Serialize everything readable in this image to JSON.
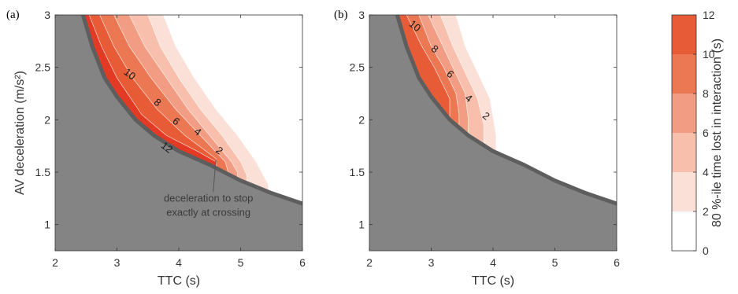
{
  "chart_data": [
    {
      "type": "contour",
      "panel": "(a)",
      "xlabel": "TTC (s)",
      "ylabel": "AV deceleration (m/s²)",
      "xlim": [
        2,
        6
      ],
      "ylim": [
        0.75,
        3
      ],
      "xticks": [
        "2",
        "3",
        "4",
        "5",
        "6"
      ],
      "yticks": [
        "1",
        "1.5",
        "2",
        "2.5",
        "3"
      ],
      "grey_boundary": [
        [
          2.45,
          3.0
        ],
        [
          2.6,
          2.7
        ],
        [
          2.8,
          2.4
        ],
        [
          3.0,
          2.22
        ],
        [
          3.3,
          2.0
        ],
        [
          3.6,
          1.85
        ],
        [
          4.0,
          1.7
        ],
        [
          4.5,
          1.57
        ],
        [
          5.0,
          1.42
        ],
        [
          5.5,
          1.3
        ],
        [
          6.0,
          1.2
        ]
      ],
      "band_edges": [
        {
          "level": 12,
          "points": [
            [
              2.55,
              3.0
            ],
            [
              2.75,
              2.7
            ],
            [
              3.0,
              2.4
            ],
            [
              3.4,
              2.05
            ],
            [
              3.8,
              1.85
            ],
            [
              4.3,
              1.7
            ],
            [
              4.6,
              1.6
            ]
          ]
        },
        {
          "level": 10,
          "points": [
            [
              2.72,
              3.0
            ],
            [
              2.95,
              2.7
            ],
            [
              3.25,
              2.4
            ],
            [
              3.65,
              2.1
            ],
            [
              4.1,
              1.85
            ],
            [
              4.6,
              1.63
            ]
          ]
        },
        {
          "level": 8,
          "points": [
            [
              2.95,
              3.0
            ],
            [
              3.2,
              2.7
            ],
            [
              3.55,
              2.4
            ],
            [
              3.95,
              2.1
            ],
            [
              4.35,
              1.85
            ],
            [
              4.75,
              1.6
            ],
            [
              4.8,
              1.5
            ]
          ]
        },
        {
          "level": 6,
          "points": [
            [
              3.2,
              3.0
            ],
            [
              3.45,
              2.7
            ],
            [
              3.8,
              2.4
            ],
            [
              4.15,
              2.1
            ],
            [
              4.5,
              1.85
            ],
            [
              4.85,
              1.6
            ],
            [
              4.95,
              1.5
            ]
          ]
        },
        {
          "level": 4,
          "points": [
            [
              3.5,
              3.0
            ],
            [
              3.7,
              2.7
            ],
            [
              4.0,
              2.4
            ],
            [
              4.35,
              2.1
            ],
            [
              4.7,
              1.85
            ],
            [
              5.0,
              1.6
            ],
            [
              5.1,
              1.47
            ]
          ]
        },
        {
          "level": 2,
          "points": [
            [
              3.75,
              3.0
            ],
            [
              3.95,
              2.7
            ],
            [
              4.25,
              2.4
            ],
            [
              4.6,
              2.1
            ],
            [
              4.95,
              1.85
            ],
            [
              5.25,
              1.6
            ],
            [
              5.45,
              1.38
            ]
          ]
        }
      ],
      "contour_labels": [
        {
          "text": "10",
          "x": 3.2,
          "y": 2.43
        },
        {
          "text": "8",
          "x": 3.65,
          "y": 2.16
        },
        {
          "text": "6",
          "x": 3.95,
          "y": 1.98
        },
        {
          "text": "4",
          "x": 4.3,
          "y": 1.88
        },
        {
          "text": "12",
          "x": 3.8,
          "y": 1.73
        },
        {
          "text": "2",
          "x": 4.65,
          "y": 1.7
        }
      ],
      "annotation": {
        "lines": [
          "deceleration to stop",
          "exactly at crossing"
        ],
        "x": 4.48,
        "y": 1.22,
        "arrow_to": [
          4.6,
          1.62
        ]
      }
    },
    {
      "type": "contour",
      "panel": "(b)",
      "xlabel": "TTC (s)",
      "ylabel": "",
      "xlim": [
        2,
        6
      ],
      "ylim": [
        0.75,
        3
      ],
      "xticks": [
        "2",
        "3",
        "4",
        "5",
        "6"
      ],
      "yticks": [
        "1",
        "1.5",
        "2",
        "2.5",
        "3"
      ],
      "grey_boundary": [
        [
          2.45,
          3.0
        ],
        [
          2.6,
          2.7
        ],
        [
          2.8,
          2.4
        ],
        [
          3.0,
          2.22
        ],
        [
          3.3,
          2.0
        ],
        [
          3.6,
          1.85
        ],
        [
          4.0,
          1.7
        ],
        [
          4.5,
          1.57
        ],
        [
          5.0,
          1.42
        ],
        [
          5.5,
          1.3
        ],
        [
          6.0,
          1.2
        ]
      ],
      "band_edges": [
        {
          "level": 10,
          "points": [
            [
              2.6,
              3.0
            ],
            [
              2.85,
              2.7
            ],
            [
              3.05,
              2.5
            ],
            [
              3.3,
              2.2
            ]
          ]
        },
        {
          "level": 8,
          "points": [
            [
              2.8,
              3.0
            ],
            [
              3.0,
              2.7
            ],
            [
              3.2,
              2.5
            ],
            [
              3.4,
              2.25
            ],
            [
              3.45,
              2.05
            ]
          ]
        },
        {
          "level": 6,
          "points": [
            [
              2.95,
              3.0
            ],
            [
              3.15,
              2.75
            ],
            [
              3.35,
              2.5
            ],
            [
              3.55,
              2.25
            ],
            [
              3.6,
              2.0
            ]
          ]
        },
        {
          "level": 4,
          "points": [
            [
              3.15,
              3.0
            ],
            [
              3.35,
              2.7
            ],
            [
              3.55,
              2.45
            ],
            [
              3.75,
              2.2
            ],
            [
              3.85,
              1.95
            ]
          ]
        },
        {
          "level": 2,
          "points": [
            [
              3.4,
              3.0
            ],
            [
              3.55,
              2.7
            ],
            [
              3.75,
              2.45
            ],
            [
              3.95,
              2.2
            ],
            [
              4.05,
              1.85
            ]
          ]
        }
      ],
      "contour_labels": [
        {
          "text": "10",
          "x": 2.73,
          "y": 2.89
        },
        {
          "text": "8",
          "x": 3.05,
          "y": 2.67
        },
        {
          "text": "6",
          "x": 3.3,
          "y": 2.43
        },
        {
          "text": "4",
          "x": 3.6,
          "y": 2.2
        },
        {
          "text": "2",
          "x": 3.88,
          "y": 2.03
        }
      ]
    }
  ],
  "colorbar": {
    "label": "80 %-ile time lost in interaction (s)",
    "ticks": [
      "0",
      "2",
      "4",
      "6",
      "8",
      "10",
      "12"
    ],
    "range": [
      0,
      12
    ],
    "levels": [
      0,
      2,
      4,
      6,
      8,
      10
    ],
    "colors": [
      "#ffffff",
      "#fbe0d8",
      "#f8c0ac",
      "#f29d83",
      "#ec7753",
      "#e75b36",
      "#e23a24"
    ]
  },
  "grey_fill": "#848484",
  "boundary_color": "#5e5e5e"
}
